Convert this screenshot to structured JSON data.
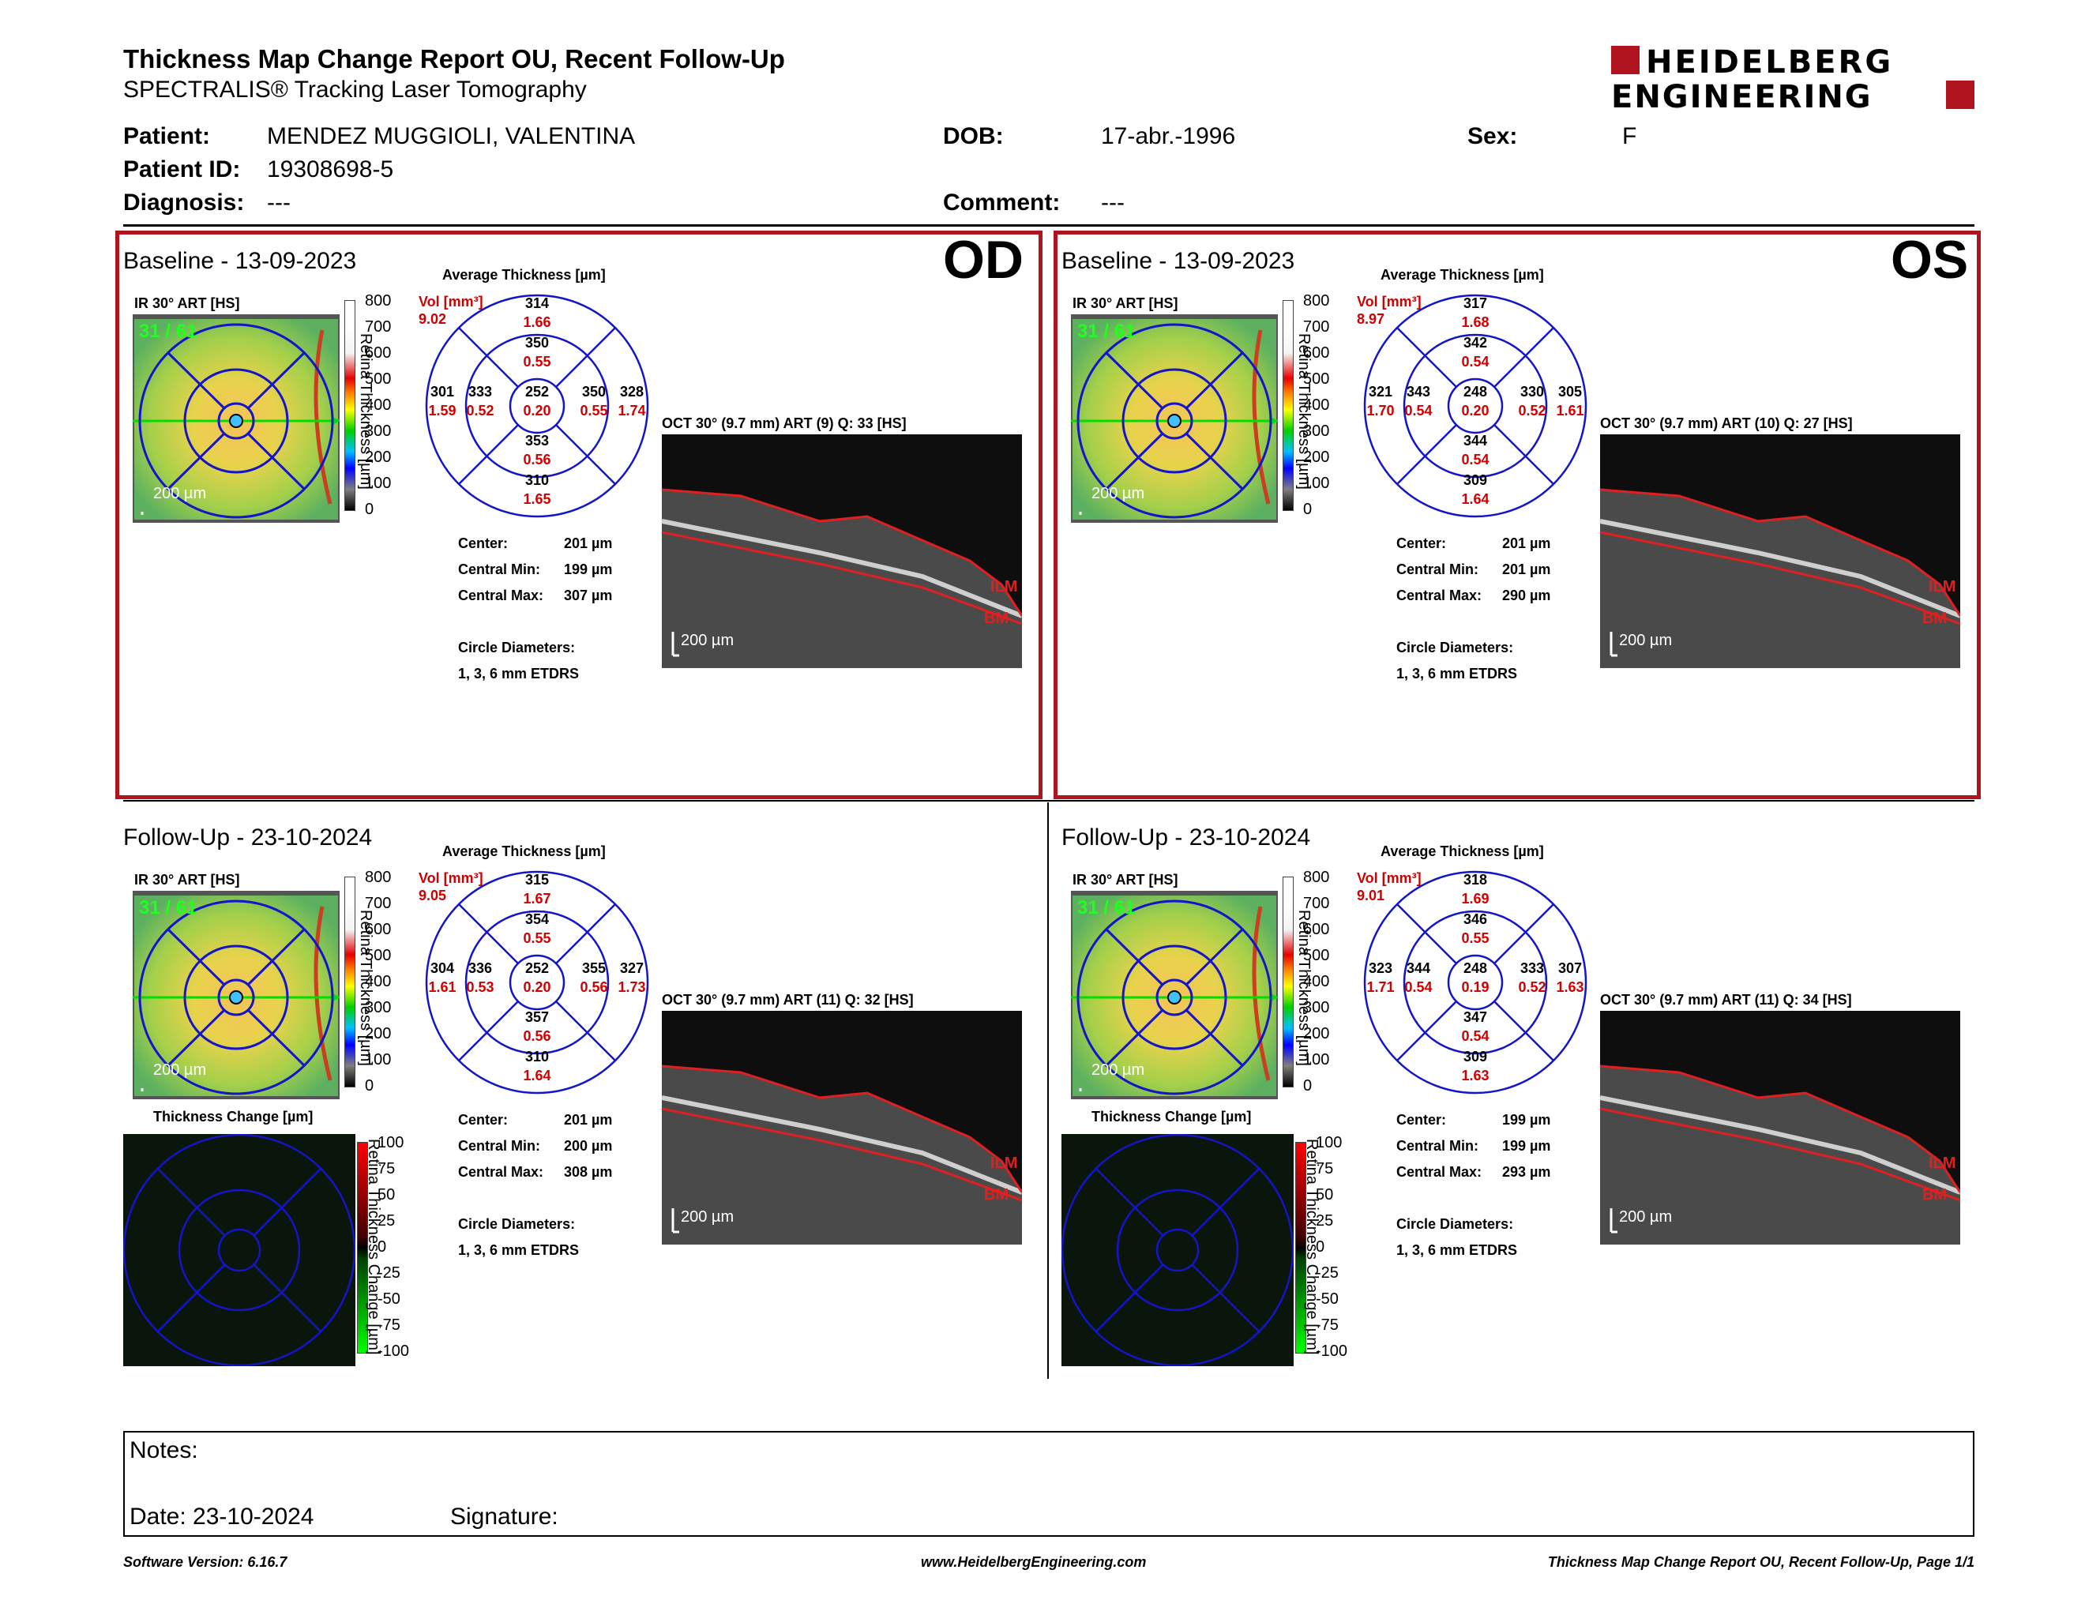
{
  "header": {
    "title": "Thickness Map Change Report OU, Recent Follow-Up",
    "subtitle": "SPECTRALIS® Tracking Laser Tomography",
    "logo_line1": "HEIDELBERG",
    "logo_line2": "ENGINEERING"
  },
  "patient": {
    "patient_label": "Patient:",
    "patient_value": "MENDEZ MUGGIOLI, VALENTINA",
    "id_label": "Patient ID:",
    "id_value": "19308698-5",
    "diagnosis_label": "Diagnosis:",
    "diagnosis_value": "---",
    "dob_label": "DOB:",
    "dob_value": "17-abr.-1996",
    "comment_label": "Comment:",
    "comment_value": "---",
    "sex_label": "Sex:",
    "sex_value": "F"
  },
  "eyes": {
    "od": "OD",
    "os": "OS"
  },
  "colorbar_ticks": [
    "800",
    "700",
    "600",
    "500",
    "400",
    "300",
    "200",
    "100",
    "0"
  ],
  "colorbar_label": "Retina Thickness [µm]",
  "change_ticks": [
    "100",
    "75",
    "50",
    "25",
    "0",
    "-25",
    "-50",
    "-75",
    "-100"
  ],
  "change_label": "Retina Thickness Change [µm]",
  "change_title": "Thickness Change [µm]",
  "avg_title": "Average Thickness [µm]",
  "vol_label": "Vol [mm³]",
  "scale_label": "200 µm",
  "stats_labels": {
    "center": "Center:",
    "min": "Central Min:",
    "max": "Central Max:",
    "diam": "Circle Diameters:",
    "diam_value": "1, 3, 6 mm ETDRS"
  },
  "ilm": "ILM",
  "bm": "BM",
  "fundus_overlay": "31 / 61",
  "exams": [
    {
      "title": "Baseline - 13-09-2023",
      "ir_label": "IR 30° ART [HS]",
      "oct_label": "OCT 30° (9.7 mm) ART (9) Q: 33 [HS]",
      "vol": "9.02",
      "grid": {
        "outer_top": [
          "314",
          "1.66"
        ],
        "inner_top": [
          "350",
          "0.55"
        ],
        "outer_left": [
          "301",
          "1.59"
        ],
        "inner_left": [
          "333",
          "0.52"
        ],
        "center": [
          "252",
          "0.20"
        ],
        "inner_right": [
          "350",
          "0.55"
        ],
        "outer_right": [
          "328",
          "1.74"
        ],
        "inner_bottom": [
          "353",
          "0.56"
        ],
        "outer_bottom": [
          "310",
          "1.65"
        ]
      },
      "center": "201 µm",
      "min": "199 µm",
      "max": "307 µm"
    },
    {
      "title": "Baseline - 13-09-2023",
      "ir_label": "IR 30° ART [HS]",
      "oct_label": "OCT 30° (9.7 mm) ART (10) Q: 27 [HS]",
      "vol": "8.97",
      "grid": {
        "outer_top": [
          "317",
          "1.68"
        ],
        "inner_top": [
          "342",
          "0.54"
        ],
        "outer_left": [
          "321",
          "1.70"
        ],
        "inner_left": [
          "343",
          "0.54"
        ],
        "center": [
          "248",
          "0.20"
        ],
        "inner_right": [
          "330",
          "0.52"
        ],
        "outer_right": [
          "305",
          "1.61"
        ],
        "inner_bottom": [
          "344",
          "0.54"
        ],
        "outer_bottom": [
          "309",
          "1.64"
        ]
      },
      "center": "201 µm",
      "min": "201 µm",
      "max": "290 µm"
    },
    {
      "title": "Follow-Up - 23-10-2024",
      "ir_label": "IR 30° ART [HS]",
      "oct_label": "OCT 30° (9.7 mm) ART (11) Q: 32 [HS]",
      "vol": "9.05",
      "grid": {
        "outer_top": [
          "315",
          "1.67"
        ],
        "inner_top": [
          "354",
          "0.55"
        ],
        "outer_left": [
          "304",
          "1.61"
        ],
        "inner_left": [
          "336",
          "0.53"
        ],
        "center": [
          "252",
          "0.20"
        ],
        "inner_right": [
          "355",
          "0.56"
        ],
        "outer_right": [
          "327",
          "1.73"
        ],
        "inner_bottom": [
          "357",
          "0.56"
        ],
        "outer_bottom": [
          "310",
          "1.64"
        ]
      },
      "center": "201 µm",
      "min": "200 µm",
      "max": "308 µm"
    },
    {
      "title": "Follow-Up - 23-10-2024",
      "ir_label": "IR 30° ART [HS]",
      "oct_label": "OCT 30° (9.7 mm) ART (11) Q: 34 [HS]",
      "vol": "9.01",
      "grid": {
        "outer_top": [
          "318",
          "1.69"
        ],
        "inner_top": [
          "346",
          "0.55"
        ],
        "outer_left": [
          "323",
          "1.71"
        ],
        "inner_left": [
          "344",
          "0.54"
        ],
        "center": [
          "248",
          "0.19"
        ],
        "inner_right": [
          "333",
          "0.52"
        ],
        "outer_right": [
          "307",
          "1.63"
        ],
        "inner_bottom": [
          "347",
          "0.54"
        ],
        "outer_bottom": [
          "309",
          "1.63"
        ]
      },
      "center": "199 µm",
      "min": "199 µm",
      "max": "293 µm"
    }
  ],
  "notes": {
    "label": "Notes:",
    "date": "Date: 23-10-2024",
    "signature": "Signature:"
  },
  "footer": {
    "version": "Software Version: 6.16.7",
    "url": "www.HeidelbergEngineering.com",
    "page": "Thickness Map Change Report OU, Recent Follow-Up, Page 1/1"
  },
  "colors": {
    "accent": "#b1141e",
    "grid_blue": "#1414c8",
    "value_red": "#d00000"
  }
}
